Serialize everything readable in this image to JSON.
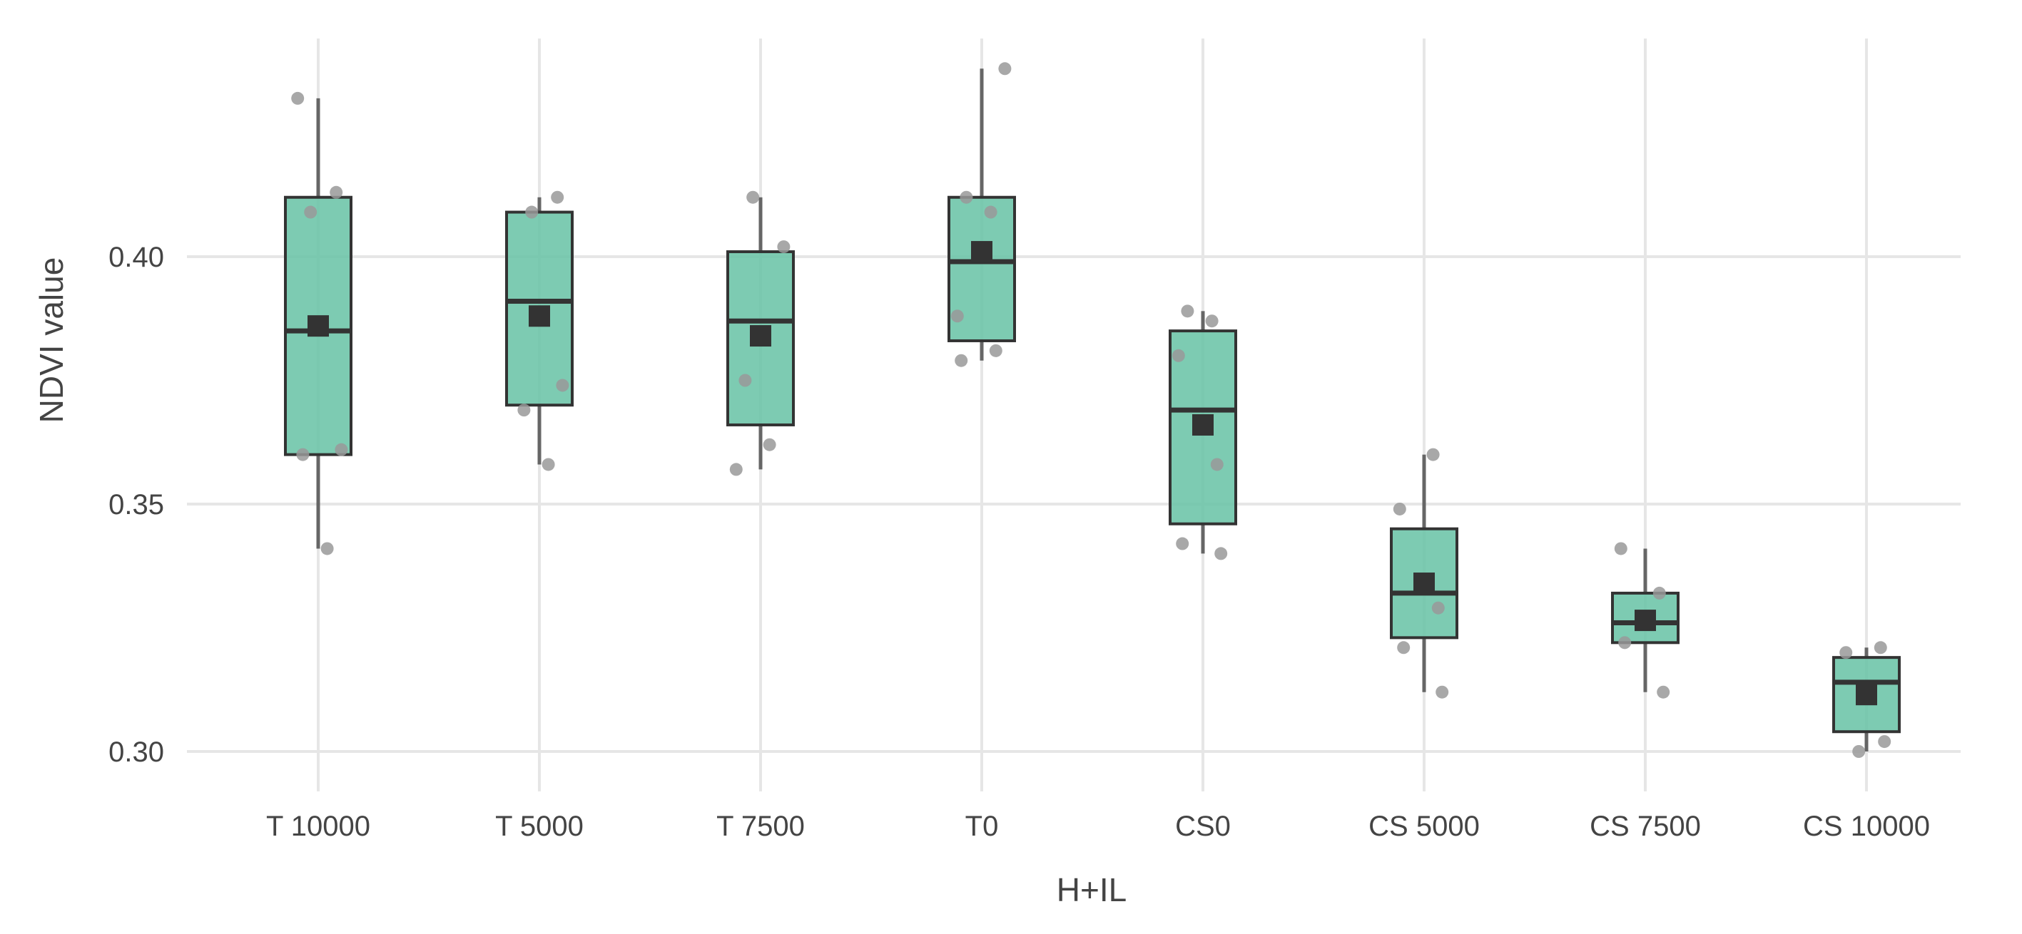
{
  "chart_data": {
    "type": "boxplot",
    "title": "",
    "xlabel": "H+IL",
    "ylabel": "NDVI value",
    "ylim": [
      0.288,
      0.443
    ],
    "yticks": [
      0.3,
      0.35,
      0.4
    ],
    "ytick_labels": [
      "0.30",
      "0.35",
      "0.40"
    ],
    "grid": true,
    "legend": "none",
    "colors": {
      "box": "#66c2a5",
      "outline": "#333333",
      "whisker": "#666666",
      "point": "#999999",
      "mean": "#333333",
      "grid": "#e6e6e6"
    },
    "categories": [
      "T 10000",
      "T 5000",
      "T 7500",
      "T0",
      "CS0",
      "CS 5000",
      "CS 7500",
      "CS 10000"
    ],
    "boxes": [
      {
        "q1": 0.36,
        "median": 0.385,
        "q3": 0.412,
        "whisker_low": 0.341,
        "whisker_high": 0.432,
        "mean": 0.386,
        "points": [
          0.432,
          0.413,
          0.409,
          0.361,
          0.36,
          0.341
        ]
      },
      {
        "q1": 0.37,
        "median": 0.391,
        "q3": 0.409,
        "whisker_low": 0.358,
        "whisker_high": 0.412,
        "mean": 0.388,
        "points": [
          0.412,
          0.409,
          0.374,
          0.369,
          0.358
        ]
      },
      {
        "q1": 0.366,
        "median": 0.387,
        "q3": 0.401,
        "whisker_low": 0.357,
        "whisker_high": 0.412,
        "mean": 0.384,
        "points": [
          0.412,
          0.402,
          0.375,
          0.362,
          0.357
        ]
      },
      {
        "q1": 0.383,
        "median": 0.399,
        "q3": 0.412,
        "whisker_low": 0.379,
        "whisker_high": 0.438,
        "mean": 0.401,
        "points": [
          0.438,
          0.412,
          0.409,
          0.388,
          0.381,
          0.379
        ]
      },
      {
        "q1": 0.346,
        "median": 0.369,
        "q3": 0.385,
        "whisker_low": 0.34,
        "whisker_high": 0.389,
        "mean": 0.366,
        "points": [
          0.389,
          0.387,
          0.38,
          0.358,
          0.342,
          0.34
        ]
      },
      {
        "q1": 0.323,
        "median": 0.332,
        "q3": 0.345,
        "whisker_low": 0.312,
        "whisker_high": 0.36,
        "mean": 0.334,
        "points": [
          0.36,
          0.349,
          0.329,
          0.321,
          0.312
        ]
      },
      {
        "q1": 0.322,
        "median": 0.326,
        "q3": 0.332,
        "whisker_low": 0.312,
        "whisker_high": 0.341,
        "mean": 0.3265,
        "points": [
          0.341,
          0.332,
          0.322,
          0.312
        ]
      },
      {
        "q1": 0.304,
        "median": 0.314,
        "q3": 0.319,
        "whisker_low": 0.3,
        "whisker_high": 0.321,
        "mean": 0.3115,
        "points": [
          0.321,
          0.32,
          0.302,
          0.3
        ]
      }
    ]
  }
}
